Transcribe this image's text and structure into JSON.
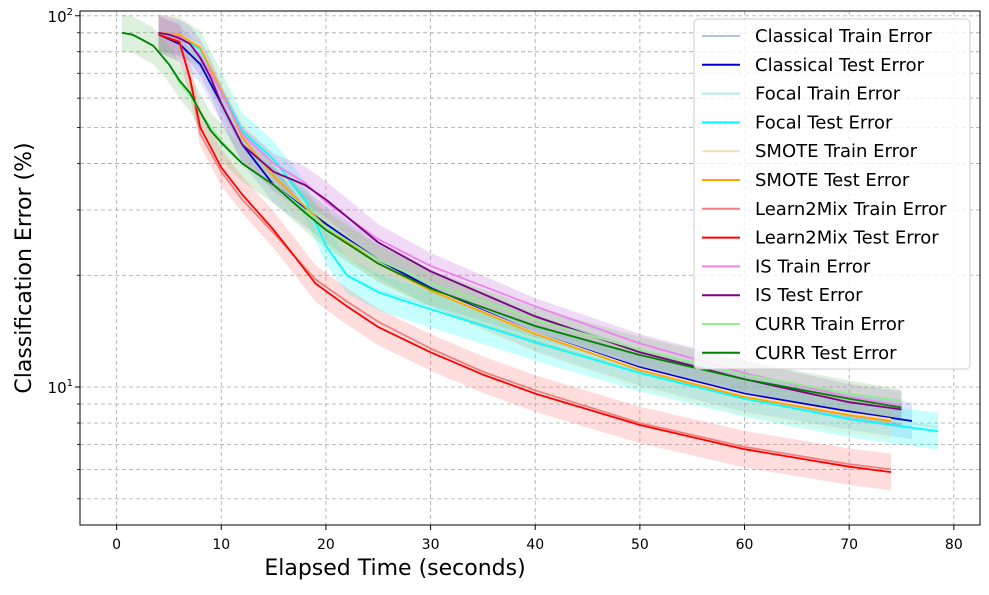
{
  "chart_data": {
    "type": "line",
    "title": "",
    "xlabel": "Elapsed Time (seconds)",
    "ylabel": "Classification Error (%)",
    "xlim": [
      -3.5,
      82.5
    ],
    "ylim": [
      4.25,
      103
    ],
    "yscale": "log",
    "grid": true,
    "legend_position": "top-right",
    "x_ticks": [
      0,
      10,
      20,
      30,
      40,
      50,
      60,
      70,
      80
    ],
    "x_tick_labels": [
      "0",
      "10",
      "20",
      "30",
      "40",
      "50",
      "60",
      "70",
      "80"
    ],
    "y_major_ticks": [
      10,
      100
    ],
    "y_tick_labels": [
      "10^1",
      "10^2"
    ],
    "y_minor_ticks": [
      5,
      6,
      7,
      8,
      9,
      20,
      30,
      40,
      50,
      60,
      70,
      80,
      90
    ],
    "series": [
      {
        "name": "Classical Train Error",
        "color": "#b0c4de",
        "band": false,
        "x": [
          4,
          6,
          8,
          10,
          12,
          15,
          20,
          25,
          30,
          40,
          50,
          60,
          70,
          76
        ],
        "y": [
          89,
          86,
          76,
          56,
          44,
          34,
          27,
          22,
          18.7,
          14.2,
          11.5,
          9.7,
          8.6,
          8.1
        ]
      },
      {
        "name": "Classical Test Error",
        "color": "#0000cd",
        "band": true,
        "band_color": "#6495ed",
        "x": [
          4,
          6,
          8,
          10,
          12,
          15,
          20,
          25,
          30,
          40,
          50,
          60,
          70,
          76
        ],
        "y": [
          89,
          84,
          74,
          58,
          45,
          35,
          27.5,
          22,
          18.5,
          14,
          11.3,
          9.6,
          8.6,
          8.1
        ]
      },
      {
        "name": "Focal Train Error",
        "color": "#afeeee",
        "band": false,
        "x": [
          4,
          6,
          8,
          10,
          12,
          15,
          18,
          20,
          22,
          25,
          30,
          40,
          50,
          60,
          70,
          78.5
        ],
        "y": [
          89,
          87,
          80,
          62,
          48,
          40,
          31,
          24,
          20,
          18.2,
          16.5,
          13.5,
          11.1,
          9.5,
          8.4,
          7.8
        ]
      },
      {
        "name": "Focal Test Error",
        "color": "#00ffff",
        "band": true,
        "band_color": "#00ffff",
        "x": [
          4,
          6,
          8,
          10,
          12,
          15,
          18,
          20,
          22,
          25,
          30,
          40,
          50,
          60,
          70,
          78.5
        ],
        "y": [
          89,
          88,
          81,
          63,
          49,
          41,
          32,
          24,
          20,
          18,
          16.2,
          13.2,
          10.9,
          9.3,
          8.2,
          7.6
        ]
      },
      {
        "name": "SMOTE Train Error",
        "color": "#f5deb3",
        "band": false,
        "x": [
          4,
          6,
          8,
          10,
          12,
          15,
          20,
          25,
          30,
          40,
          50,
          60,
          70,
          74
        ],
        "y": [
          90,
          89,
          83,
          62,
          47,
          37,
          27,
          21.5,
          18.3,
          14,
          11.2,
          9.5,
          8.5,
          8.2
        ]
      },
      {
        "name": "SMOTE Test Error",
        "color": "#ffa500",
        "band": true,
        "band_color": "#ffd27f",
        "x": [
          4,
          6,
          8,
          10,
          12,
          15,
          20,
          25,
          30,
          40,
          50,
          60,
          70,
          74
        ],
        "y": [
          90,
          89,
          82,
          63,
          47,
          37,
          27,
          21.5,
          18.2,
          13.9,
          11.1,
          9.4,
          8.4,
          8.1
        ]
      },
      {
        "name": "Learn2Mix Train Error",
        "color": "#f08080",
        "band": false,
        "x": [
          4,
          6,
          7,
          8,
          10,
          12,
          15,
          17,
          19,
          22,
          25,
          30,
          35,
          40,
          50,
          60,
          70,
          74
        ],
        "y": [
          89,
          86,
          67,
          48,
          38,
          32,
          26,
          22.5,
          19.5,
          17,
          15,
          12.7,
          11,
          9.8,
          8,
          6.9,
          6.2,
          6
        ]
      },
      {
        "name": "Learn2Mix Test Error",
        "color": "#ff0000",
        "band": true,
        "band_color": "#ff6666",
        "x": [
          4,
          6,
          7,
          8,
          10,
          12,
          15,
          17,
          19,
          22,
          25,
          30,
          35,
          40,
          50,
          60,
          70,
          74
        ],
        "y": [
          89,
          85,
          68,
          50,
          39,
          33,
          26.5,
          22.5,
          19,
          16.5,
          14.5,
          12.4,
          10.8,
          9.6,
          7.9,
          6.8,
          6.1,
          5.9
        ]
      },
      {
        "name": "IS Train Error",
        "color": "#ee82ee",
        "band": false,
        "x": [
          4,
          5,
          6,
          7,
          8,
          9,
          10,
          12,
          15,
          18,
          20,
          25,
          30,
          40,
          50,
          60,
          70,
          75
        ],
        "y": [
          90,
          89,
          88,
          84,
          78,
          70,
          62,
          48,
          40,
          35.5,
          31.5,
          25,
          21.2,
          16.5,
          13.1,
          10.9,
          9.4,
          8.9
        ]
      },
      {
        "name": "IS Test Error",
        "color": "#800080",
        "band": true,
        "band_color": "#ba55d3",
        "x": [
          4,
          5,
          6,
          7,
          8,
          9,
          10,
          12,
          15,
          18,
          20,
          25,
          30,
          40,
          50,
          60,
          70,
          75
        ],
        "y": [
          90,
          89,
          87,
          84,
          77,
          68,
          58,
          45,
          38,
          35,
          32,
          24.5,
          20.5,
          15.5,
          12.4,
          10.5,
          9.1,
          8.7
        ]
      },
      {
        "name": "CURR Train Error",
        "color": "#90ee90",
        "band": false,
        "x": [
          0.5,
          1.5,
          2.5,
          3.5,
          5,
          6,
          7,
          8,
          9,
          10,
          12,
          15,
          18,
          20,
          25,
          30,
          40,
          50,
          60,
          70,
          75
        ],
        "y": [
          90,
          89,
          86,
          83,
          74,
          66,
          61,
          55,
          50,
          46,
          40,
          35,
          30,
          27,
          22,
          19,
          15.2,
          12.6,
          10.8,
          9.6,
          9.2
        ]
      },
      {
        "name": "CURR Test Error",
        "color": "#008000",
        "band": true,
        "band_color": "#66bb66",
        "x": [
          0.5,
          1.5,
          2.5,
          3.5,
          5,
          6,
          7,
          8,
          9,
          10,
          12,
          15,
          18,
          20,
          25,
          30,
          40,
          50,
          60,
          70,
          75
        ],
        "y": [
          90,
          89,
          86,
          83,
          74,
          67,
          62,
          55,
          49,
          45.5,
          40,
          35,
          29.5,
          26.5,
          21.5,
          18.4,
          14.6,
          12.2,
          10.5,
          9.3,
          8.8
        ]
      }
    ]
  }
}
